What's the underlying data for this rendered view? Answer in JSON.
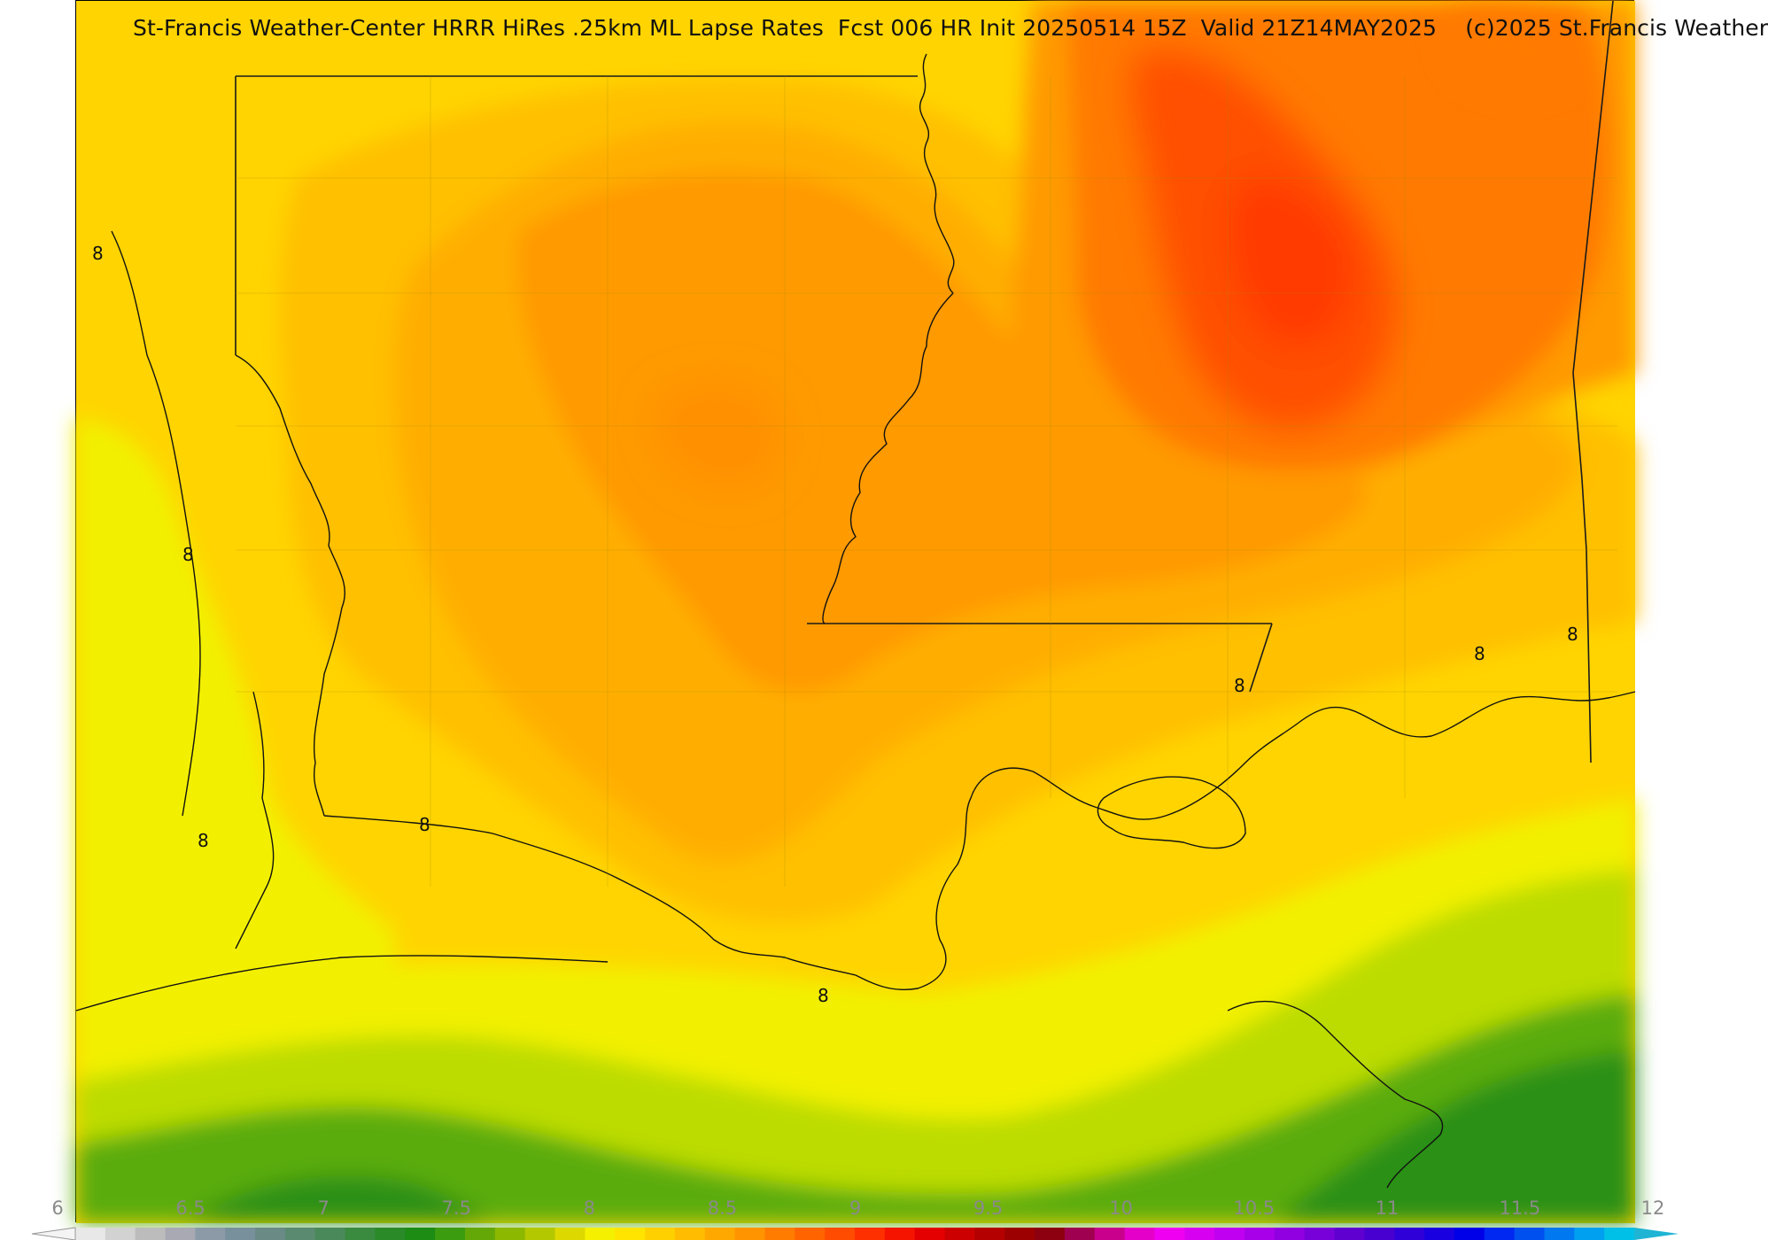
{
  "title": "St-Francis Weather-Center HRRR HiRes .25km ML Lapse Rates  Fcst 006 HR Init 20250514 15Z  Valid 21Z14MAY2025    (c)2025 St.Francis Weather",
  "contour_label": "8",
  "colorbar": {
    "ticks": [
      "6",
      "6.5",
      "7",
      "7.5",
      "8",
      "8.5",
      "9",
      "9.5",
      "10",
      "10.5",
      "11",
      "11.5",
      "12"
    ],
    "colors": [
      "#e8e8e8",
      "#d2d2d2",
      "#bcbcbc",
      "#a9a9b4",
      "#8c9aa8",
      "#78909c",
      "#6a8a86",
      "#5a8a70",
      "#4a8a5a",
      "#3a8a40",
      "#2a8a28",
      "#1c8c14",
      "#3c9c10",
      "#64a808",
      "#8cb800",
      "#b4c800",
      "#dcd800",
      "#f4f000",
      "#ffe400",
      "#ffd000",
      "#ffbc00",
      "#ffa800",
      "#ff9400",
      "#ff7c00",
      "#ff6400",
      "#ff4c00",
      "#ff3000",
      "#f41400",
      "#e40000",
      "#cc0000",
      "#b40000",
      "#9c0000",
      "#8c0010",
      "#a00050",
      "#c8008c",
      "#e400c8",
      "#f000f0",
      "#d800f0",
      "#c000f0",
      "#a800e8",
      "#9000e0",
      "#7800d8",
      "#6000d0",
      "#4800d0",
      "#3000d8",
      "#1800e0",
      "#0000e8",
      "#0028f0",
      "#0050f0",
      "#0078f0",
      "#00a0f0",
      "#00c0e8"
    ],
    "min_color": "#f4f4f4",
    "max_color": "#20b4d4"
  },
  "palette": {
    "green_dark": "#2a9012",
    "green": "#5aac0c",
    "yellow_green": "#bcdc00",
    "yellow": "#f2f000",
    "gold": "#ffd400",
    "amber": "#ffc000",
    "orange_light": "#ffae00",
    "orange": "#ff9a00",
    "orange_dark": "#ff7a00",
    "red_orange": "#ff5000",
    "red": "#ff3a00"
  }
}
